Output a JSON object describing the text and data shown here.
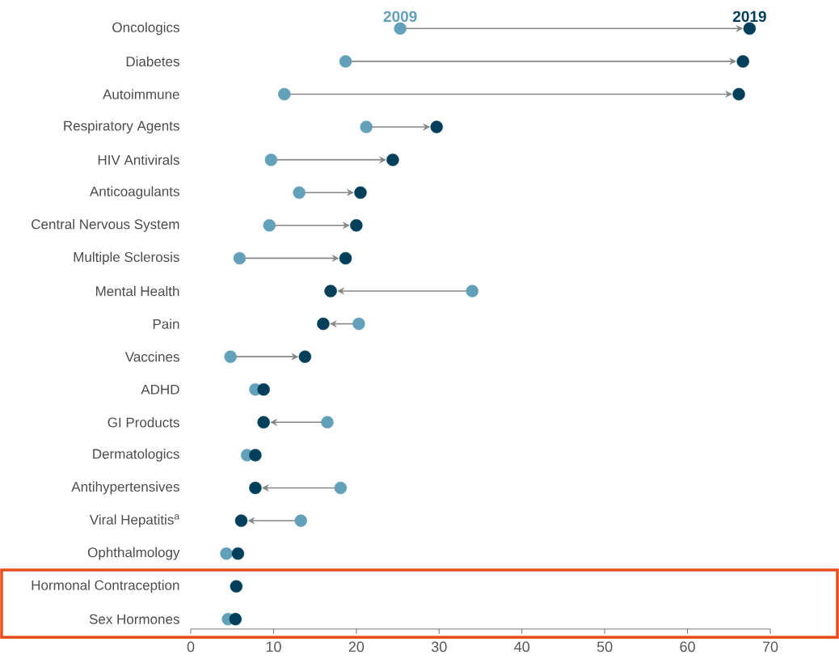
{
  "chart_data": {
    "type": "scatter",
    "orientation": "horizontal",
    "categories": [
      "Oncologics",
      "Diabetes",
      "Autoimmune",
      "Respiratory Agents",
      "HIV Antivirals",
      "Anticoagulants",
      "Central Nervous System",
      "Multiple Sclerosis",
      "Mental Health",
      "Pain",
      "Vaccines",
      "ADHD",
      "GI Products",
      "Dermatologics",
      "Antihypertensives",
      "Viral Hepatitis$^{a}$",
      "Ophthalmology",
      "Hormonal Contraception",
      "Sex Hormones"
    ],
    "series": [
      {
        "name": "2009",
        "color": "#63a0ba",
        "values": [
          25.3,
          18.7,
          11.3,
          21.2,
          9.7,
          13.1,
          9.5,
          5.9,
          34.0,
          20.3,
          4.8,
          7.8,
          16.5,
          6.8,
          18.1,
          13.3,
          4.3,
          null,
          4.5
        ]
      },
      {
        "name": "2019",
        "color": "#003f5a",
        "values": [
          67.5,
          66.7,
          66.2,
          29.7,
          24.4,
          20.5,
          20.0,
          18.7,
          16.9,
          16.0,
          13.8,
          8.8,
          8.8,
          7.8,
          7.8,
          6.1,
          5.7,
          5.5,
          5.4
        ]
      }
    ],
    "xlim": [
      0,
      70
    ],
    "xticks": [
      0,
      10,
      20,
      30,
      40,
      50,
      60,
      70
    ]
  }
}
